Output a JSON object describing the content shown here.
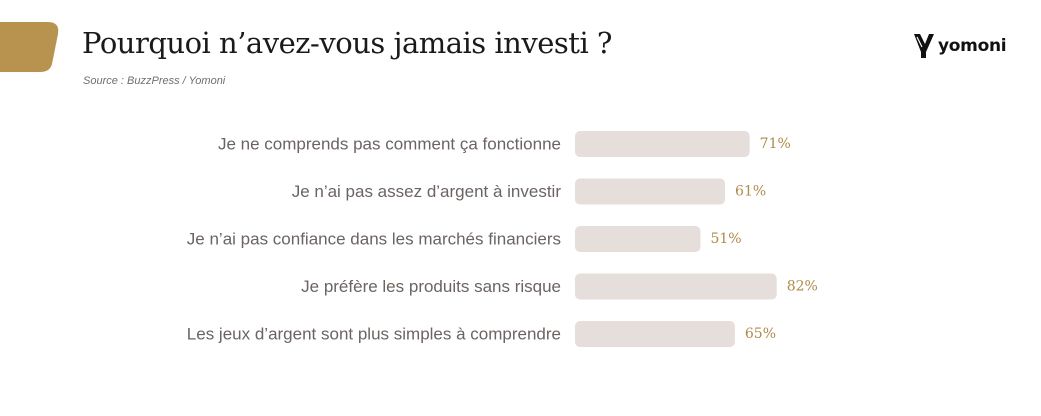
{
  "title": "Pourquoi n’avez-vous jamais investi ?",
  "source": "Source : BuzzPress / Yomoni",
  "brand": {
    "name": "yomoni",
    "icon": "yomoni-y-logo-icon"
  },
  "colors": {
    "accent": "#b8934f",
    "bar": "#e6dedb",
    "label": "#6b6461",
    "value": "#b08a4a"
  },
  "chart_data": {
    "type": "bar",
    "orientation": "horizontal",
    "title": "",
    "xlabel": "",
    "ylabel": "",
    "categories": [
      "Je ne comprends pas comment ça fonctionne",
      "Je n’ai pas assez d’argent à investir",
      "Je n’ai pas confiance dans les marchés financiers",
      "Je préfère les produits sans risque",
      "Les jeux d’argent sont plus simples à comprendre"
    ],
    "values": [
      71,
      61,
      51,
      82,
      65
    ],
    "value_labels": [
      "71%",
      "61%",
      "51%",
      "82%",
      "65%"
    ],
    "unit": "%",
    "xlim": [
      0,
      100
    ],
    "grid": false,
    "legend": false
  }
}
